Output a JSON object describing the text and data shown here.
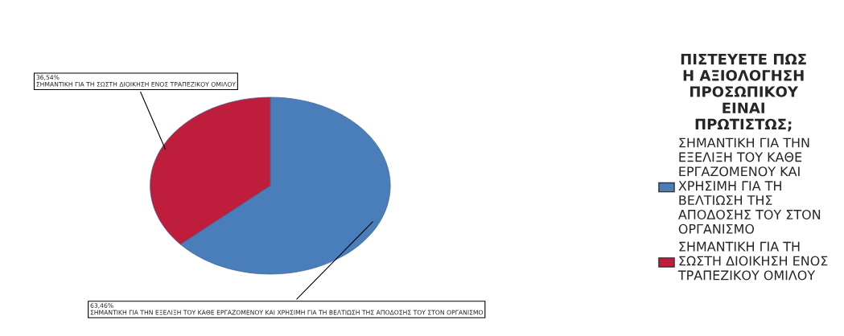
{
  "chart_data": {
    "type": "pie",
    "legend_title": "ΠΙΣΤΕΥΕΤΕ ΠΩΣ Η ΑΞΙΟΛΟΓΗΣΗ ΠΡΟΣΩΠΙΚΟΥ ΕΙΝΑΙ ΠΡΩΤΙΣΤΩΣ;",
    "categories": [
      "ΣΗΜΑΝΤΙΚΗ ΓΙΑ ΤΗΝ ΕΞΕΛΙΞΗ ΤΟΥ ΚΑΘΕ ΕΡΓΑΖΟΜΕΝΟΥ ΚΑΙ ΧΡΗΣΙΜΗ ΓΙΑ ΤΗ ΒΕΛΤΙΩΣΗ ΤΗΣ ΑΠΟΔΟΣΗΣ ΤΟΥ ΣΤΟΝ ΟΡΓΑΝΙΣΜΟ",
      "ΣΗΜΑΝΤΙΚΗ ΓΙΑ ΤΗ ΣΩΣΤΗ ΔΙΟΙΚΗΣΗ ΕΝΟΣ ΤΡΑΠΕΖΙΚΟΥ ΟΜΙΛΟΥ"
    ],
    "values": [
      63.46,
      36.54
    ],
    "value_labels": [
      "63,46%",
      "36,54%"
    ],
    "colors": [
      "#4a7ebb",
      "#be1e3c"
    ],
    "legend": "right"
  }
}
